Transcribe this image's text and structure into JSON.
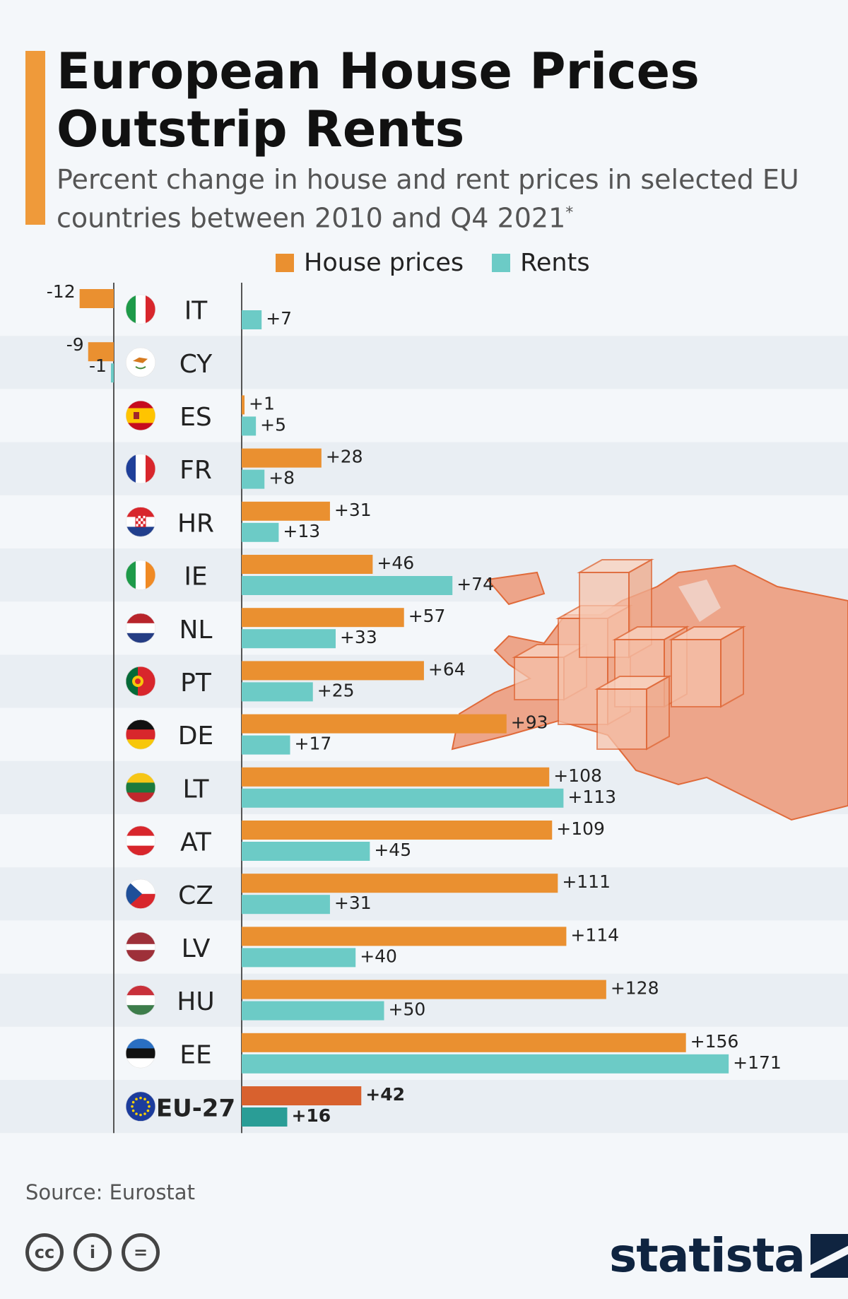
{
  "header": {
    "title": "European House Prices Outstrip Rents",
    "subtitle": "Percent change in house and rent prices in selected EU countries between 2010 and Q4 2021",
    "subtitle_mark": "*"
  },
  "colors": {
    "accent": "#ef9a3a",
    "house": "#ea9030",
    "rent": "#6ccbc6",
    "house_eu": "#d8612e",
    "rent_eu": "#2a9d96",
    "stripe": "#e9eef3",
    "map": "#eda58a"
  },
  "chart_data": {
    "type": "bar",
    "orientation": "horizontal",
    "legend_position": "top",
    "series": [
      {
        "name": "House prices",
        "color": "#ea9030",
        "values": [
          -12,
          -9,
          1,
          28,
          31,
          46,
          57,
          64,
          93,
          108,
          109,
          111,
          114,
          128,
          156,
          42
        ]
      },
      {
        "name": "Rents",
        "color": "#6ccbc6",
        "values": [
          7,
          -1,
          5,
          8,
          13,
          74,
          33,
          25,
          17,
          113,
          45,
          31,
          40,
          50,
          171,
          16
        ]
      }
    ],
    "categories": [
      "IT",
      "CY",
      "ES",
      "FR",
      "HR",
      "IE",
      "NL",
      "PT",
      "DE",
      "LT",
      "AT",
      "CZ",
      "LV",
      "HU",
      "EE",
      "EU-27"
    ],
    "value_labels": {
      "house": [
        "-12",
        "-9",
        "+1",
        "+28",
        "+31",
        "+46",
        "+57",
        "+64",
        "+93",
        "+108",
        "+109",
        "+111",
        "+114",
        "+128",
        "+156",
        "+42"
      ],
      "rent": [
        "+7",
        "-1",
        "+5",
        "+8",
        "+13",
        "+74",
        "+33",
        "+25",
        "+17",
        "+113",
        "+45",
        "+31",
        "+40",
        "+50",
        "+171",
        "+16"
      ]
    },
    "highlight_category": "EU-27",
    "flags": [
      "italy-flag-icon",
      "cyprus-flag-icon",
      "spain-flag-icon",
      "france-flag-icon",
      "croatia-flag-icon",
      "ireland-flag-icon",
      "netherlands-flag-icon",
      "portugal-flag-icon",
      "germany-flag-icon",
      "lithuania-flag-icon",
      "austria-flag-icon",
      "czechia-flag-icon",
      "latvia-flag-icon",
      "hungary-flag-icon",
      "estonia-flag-icon",
      "eu-flag-icon"
    ],
    "xlim": [
      -13,
      175
    ],
    "xlabel": "",
    "ylabel": "",
    "grid": false
  },
  "footer": {
    "source": "Source: Eurostat",
    "logo": "statista",
    "license_icons": [
      "cc-icon",
      "by-icon",
      "nd-icon"
    ],
    "license_text": [
      "cc",
      "i",
      "="
    ]
  }
}
